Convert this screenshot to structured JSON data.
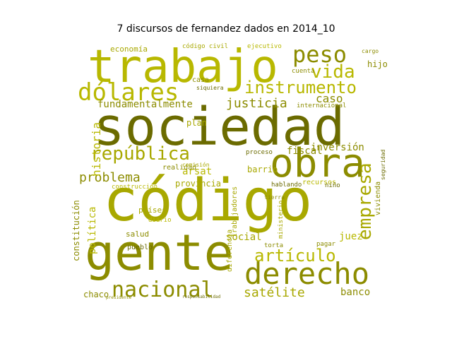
{
  "title": "7 discursos de fernandez dados en 2014_10",
  "palette": {
    "olive_dark": "#6b6b00",
    "olive_mid": "#8c8c00",
    "olive_light": "#a8a800",
    "yellow_olive": "#b8b800"
  },
  "words": [
    "sociedad",
    "código",
    "gente",
    "trabajo",
    "obra",
    "derecho",
    "república",
    "nacional",
    "dólares",
    "peso",
    "instrumento",
    "vida",
    "empresa",
    "artículo",
    "problema",
    "satélite",
    "justicia",
    "historia",
    "inversión",
    "caso",
    "fundamentalmente",
    "arsat",
    "banco",
    "fiscal",
    "social",
    "barrio",
    "hijo",
    "juez",
    "política",
    "constitución",
    "internacional",
    "plan",
    "provincia",
    "economía",
    "código civil",
    "ejecutivo",
    "trabajadores",
    "recursos",
    "realidad",
    "hablando",
    "salud",
    "países",
    "chaco",
    "pueblo",
    "casa",
    "diferencia",
    "vivienda",
    "niño",
    "proceso",
    "comisión",
    "construcción",
    "cuenta",
    "cargo",
    "ministerio",
    "diario",
    "torta",
    "pagar",
    "seguridad",
    "responsabilidad",
    "presidente",
    "siquiera",
    "tierra"
  ]
}
